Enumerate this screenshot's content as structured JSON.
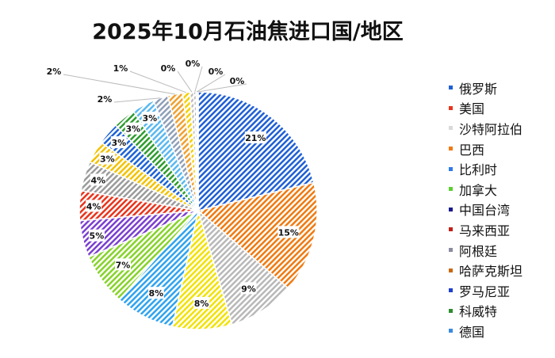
{
  "chart_data": {
    "type": "pie",
    "title": "2025年10月石油焦进口国/地区",
    "slices": [
      {
        "name": "俄罗斯",
        "value": 21,
        "label": "21%",
        "color": "#1f5fd6"
      },
      {
        "name": "美国",
        "value": 15,
        "label": "15%",
        "color": "#f07a10"
      },
      {
        "name": "沙特阿拉伯",
        "value": 9,
        "label": "9%",
        "color": "#b8b8b8"
      },
      {
        "name": "巴西",
        "value": 8,
        "label": "8%",
        "color": "#f2e200"
      },
      {
        "name": "比利时",
        "value": 8,
        "label": "8%",
        "color": "#2fa3f0"
      },
      {
        "name": "加拿大",
        "value": 7,
        "label": "7%",
        "color": "#86d32a"
      },
      {
        "name": "中国台湾",
        "value": 5,
        "label": "5%",
        "color": "#7a3fd0"
      },
      {
        "name": "马来西亚",
        "value": 4,
        "label": "4%",
        "color": "#e8341c"
      },
      {
        "name": "阿根廷",
        "value": 4,
        "label": "4%",
        "color": "#9b9b9b"
      },
      {
        "name": "哈萨克斯坦",
        "value": 3,
        "label": "3%",
        "color": "#f2c200"
      },
      {
        "name": "罗马尼亚",
        "value": 3,
        "label": "3%",
        "color": "#1d63d6"
      },
      {
        "name": "科威特",
        "value": 3,
        "label": "3%",
        "color": "#2e9c2e"
      },
      {
        "name": "德国",
        "value": 3,
        "label": "3%",
        "color": "#5ab8f0"
      },
      {
        "name": "",
        "value": 2,
        "label": "2%",
        "color": "#8f9fb8"
      },
      {
        "name": "",
        "value": 2,
        "label": "2%",
        "color": "#f0a030"
      },
      {
        "name": "",
        "value": 1,
        "label": "1%",
        "color": "#f5d000"
      },
      {
        "name": "",
        "value": 0.5,
        "label": "0%",
        "color": "#bbbbbb"
      },
      {
        "name": "",
        "value": 0.3,
        "label": "0%",
        "color": "#999999"
      },
      {
        "name": "",
        "value": 0.2,
        "label": "0%",
        "color": "#cccccc"
      },
      {
        "name": "",
        "value": 0.1,
        "label": "0%",
        "color": "#aaaaaa"
      }
    ],
    "legend": {
      "position": "right",
      "entries": [
        {
          "name": "俄罗斯",
          "color": "#1f5fd6"
        },
        {
          "name": "美国",
          "color": "#e8341c"
        },
        {
          "name": "沙特阿拉伯",
          "color": "#d9d9d9"
        },
        {
          "name": "巴西",
          "color": "#f07a10"
        },
        {
          "name": "比利时",
          "color": "#2f7ae8"
        },
        {
          "name": "加拿大",
          "color": "#5ccf2e"
        },
        {
          "name": "中国台湾",
          "color": "#1a1a8c"
        },
        {
          "name": "马来西亚",
          "color": "#c0201a"
        },
        {
          "name": "阿根廷",
          "color": "#8a8aa0"
        },
        {
          "name": "哈萨克斯坦",
          "color": "#c86a10"
        },
        {
          "name": "罗马尼亚",
          "color": "#1f3fcf"
        },
        {
          "name": "科威特",
          "color": "#2e8c2e"
        },
        {
          "name": "德国",
          "color": "#3a8ae0"
        }
      ]
    }
  }
}
